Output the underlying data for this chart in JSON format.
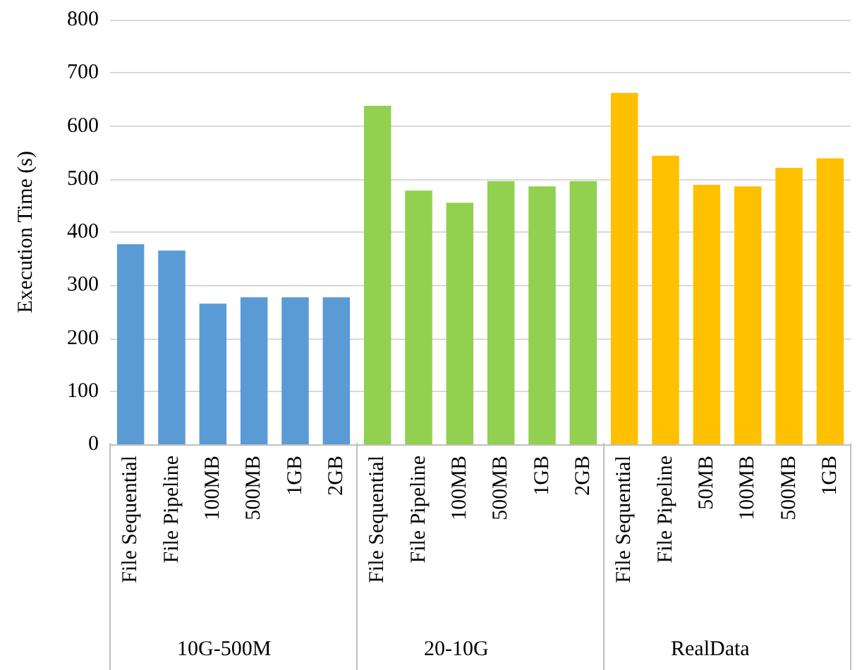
{
  "chart_data": {
    "type": "bar",
    "ylabel": "Execution Time (s)",
    "categories": [
      "File Sequential",
      "File Pipeline",
      "100MB",
      "500MB",
      "1GB",
      "2GB",
      "File Sequential",
      "File Pipeline",
      "100MB",
      "500MB",
      "1GB",
      "2GB",
      "File Sequential",
      "File Pipeline",
      "50MB",
      "100MB",
      "500MB",
      "1GB"
    ],
    "series": [
      {
        "color": "#5b9bd5",
        "values": [
          377,
          365,
          265,
          277,
          277,
          277,
          null,
          null,
          null,
          null,
          null,
          null,
          null,
          null,
          null,
          null,
          null,
          null
        ]
      },
      {
        "color": "#92d050",
        "values": [
          null,
          null,
          null,
          null,
          null,
          null,
          638,
          478,
          455,
          496,
          486,
          496,
          null,
          null,
          null,
          null,
          null,
          null
        ]
      },
      {
        "color": "#ffc000",
        "values": [
          null,
          null,
          null,
          null,
          null,
          null,
          null,
          null,
          null,
          null,
          null,
          null,
          662,
          544,
          489,
          486,
          521,
          539
        ]
      }
    ],
    "annotations": [
      "10G-500M",
      "20-10G",
      "RealData"
    ],
    "ylim": [
      0,
      800
    ],
    "yticks": [
      0,
      100,
      200,
      300,
      400,
      500,
      600,
      700,
      800
    ],
    "grid": "y"
  }
}
